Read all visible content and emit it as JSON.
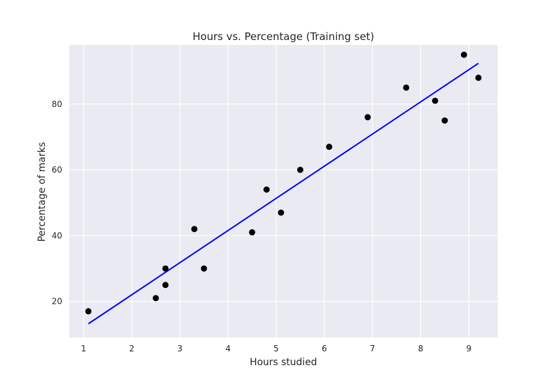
{
  "chart_data": {
    "type": "scatter",
    "title": "Hours vs. Percentage (Training set)",
    "xlabel": "Hours studied",
    "ylabel": "Percentage of marks",
    "xlim": [
      0.7,
      9.6
    ],
    "ylim": [
      9,
      98
    ],
    "x_ticks": [
      1,
      2,
      3,
      4,
      5,
      6,
      7,
      8,
      9
    ],
    "y_ticks": [
      20,
      40,
      60,
      80
    ],
    "grid": true,
    "colors": {
      "background": "#EAEAF2",
      "grid": "#FFFFFF",
      "points": "#000000",
      "line": "#0000FF"
    },
    "points": [
      {
        "x": 1.1,
        "y": 17
      },
      {
        "x": 2.5,
        "y": 21
      },
      {
        "x": 2.7,
        "y": 25
      },
      {
        "x": 2.7,
        "y": 30
      },
      {
        "x": 3.3,
        "y": 42
      },
      {
        "x": 3.5,
        "y": 30
      },
      {
        "x": 4.5,
        "y": 41
      },
      {
        "x": 4.8,
        "y": 54
      },
      {
        "x": 5.1,
        "y": 47
      },
      {
        "x": 5.5,
        "y": 60
      },
      {
        "x": 6.1,
        "y": 67
      },
      {
        "x": 6.9,
        "y": 76
      },
      {
        "x": 7.7,
        "y": 85
      },
      {
        "x": 8.3,
        "y": 81
      },
      {
        "x": 8.5,
        "y": 75
      },
      {
        "x": 8.9,
        "y": 95
      },
      {
        "x": 9.2,
        "y": 88
      }
    ],
    "regression_line": {
      "x": [
        1.1,
        9.2
      ],
      "y": [
        13.2,
        92.4
      ]
    }
  }
}
